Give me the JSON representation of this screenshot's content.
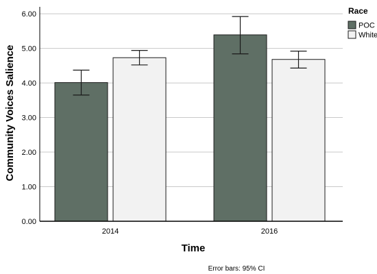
{
  "chart_data": {
    "type": "bar",
    "categories": [
      "2014",
      "2016"
    ],
    "series": [
      {
        "name": "POC",
        "color": "#5f6f65",
        "values": [
          4.01,
          5.39
        ],
        "ci_low": [
          3.65,
          4.84
        ],
        "ci_high": [
          4.37,
          5.92
        ]
      },
      {
        "name": "White",
        "color": "#f2f2f2",
        "values": [
          4.73,
          4.68
        ],
        "ci_low": [
          4.52,
          4.43
        ],
        "ci_high": [
          4.94,
          4.92
        ]
      }
    ],
    "xlabel": "Time",
    "ylabel": "Community Voices Salience",
    "ylim": [
      0,
      6.2
    ],
    "yticks": [
      "0.00",
      "1.00",
      "2.00",
      "3.00",
      "4.00",
      "5.00",
      "6.00"
    ],
    "legend_title": "Race",
    "legend_position": "top-right",
    "grid": true,
    "note": "Error bars: 95% CI"
  }
}
